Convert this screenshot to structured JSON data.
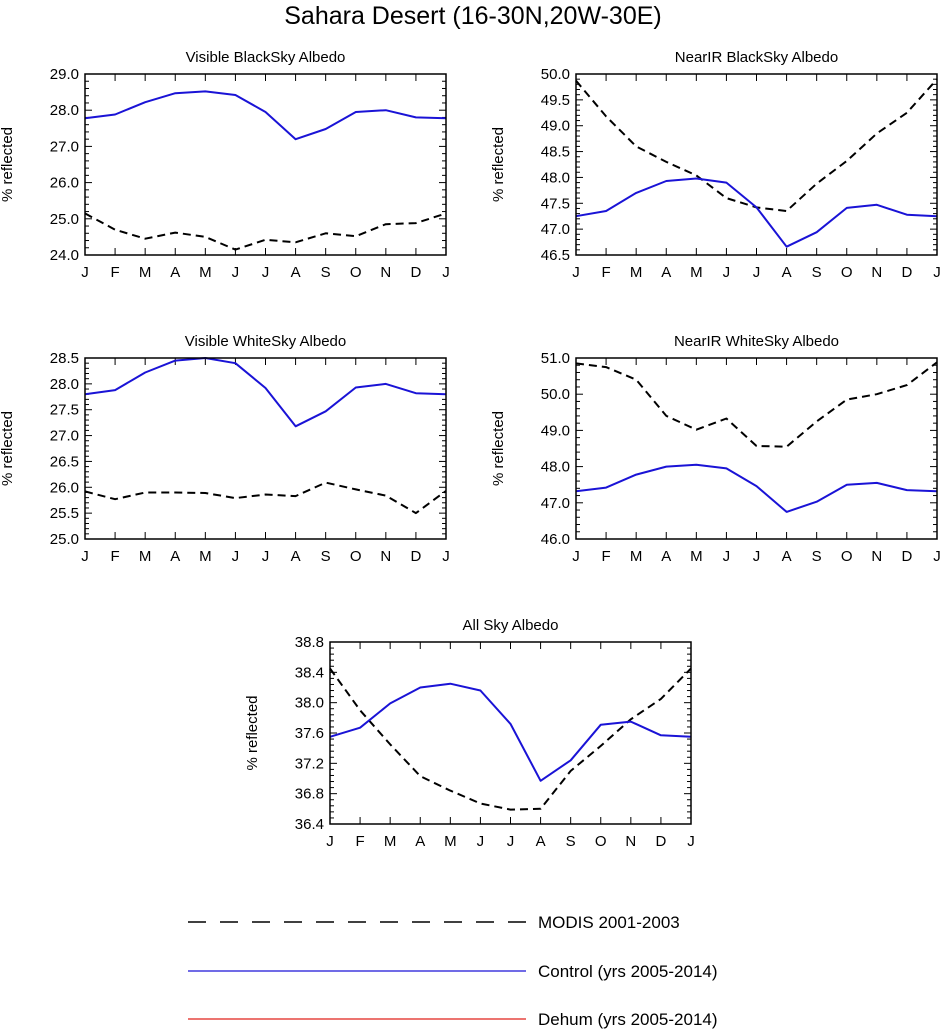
{
  "page_title": "Sahara Desert (16-30N,20W-30E)",
  "colors": {
    "modis": "#000000",
    "control": "#1a13d6",
    "dehum": "#e0201b"
  },
  "legend": {
    "entries": [
      {
        "label": "MODIS 2001-2003",
        "style": "dashed",
        "color": "#000000"
      },
      {
        "label": "Control (yrs 2005-2014)",
        "style": "solid",
        "color": "#1a13d6"
      },
      {
        "label": "Dehum (yrs 2005-2014)",
        "style": "solid",
        "color": "#e0201b"
      }
    ]
  },
  "chart_data": [
    {
      "type": "line",
      "title": "Visible BlackSky Albedo",
      "xlabel": "",
      "ylabel": "% reflected",
      "categories": [
        "J",
        "F",
        "M",
        "A",
        "M",
        "J",
        "J",
        "A",
        "S",
        "O",
        "N",
        "D",
        "J"
      ],
      "ylim": [
        24.0,
        29.0
      ],
      "yticks": [
        "24.0",
        "25.0",
        "26.0",
        "27.0",
        "28.0",
        "29.0"
      ],
      "series": [
        {
          "name": "MODIS 2001-2003",
          "values": [
            25.15,
            24.7,
            24.45,
            24.62,
            24.5,
            24.15,
            24.42,
            24.35,
            24.6,
            24.52,
            24.85,
            24.88,
            25.15
          ]
        },
        {
          "name": "Control (yrs 2005-2014)",
          "values": [
            27.78,
            27.88,
            28.22,
            28.47,
            28.52,
            28.42,
            27.95,
            27.2,
            27.48,
            27.95,
            28.0,
            27.8,
            27.78
          ]
        }
      ]
    },
    {
      "type": "line",
      "title": "NearIR BlackSky Albedo",
      "xlabel": "",
      "ylabel": "% reflected",
      "categories": [
        "J",
        "F",
        "M",
        "A",
        "M",
        "J",
        "J",
        "A",
        "S",
        "O",
        "N",
        "D",
        "J"
      ],
      "ylim": [
        46.5,
        50.0
      ],
      "yticks": [
        "46.5",
        "47.0",
        "47.5",
        "48.0",
        "48.5",
        "49.0",
        "49.5",
        "50.0"
      ],
      "series": [
        {
          "name": "MODIS 2001-2003",
          "values": [
            49.87,
            49.18,
            48.6,
            48.3,
            48.04,
            47.6,
            47.42,
            47.35,
            47.88,
            48.32,
            48.85,
            49.25,
            49.9
          ]
        },
        {
          "name": "Control (yrs 2005-2014)",
          "values": [
            47.25,
            47.35,
            47.7,
            47.93,
            47.98,
            47.9,
            47.42,
            46.66,
            46.94,
            47.41,
            47.47,
            47.28,
            47.25
          ]
        }
      ]
    },
    {
      "type": "line",
      "title": "Visible WhiteSky Albedo",
      "xlabel": "",
      "ylabel": "% reflected",
      "categories": [
        "J",
        "F",
        "M",
        "A",
        "M",
        "J",
        "J",
        "A",
        "S",
        "O",
        "N",
        "D",
        "J"
      ],
      "ylim": [
        25.0,
        28.5
      ],
      "yticks": [
        "25.0",
        "25.5",
        "26.0",
        "26.5",
        "27.0",
        "27.5",
        "28.0",
        "28.5"
      ],
      "series": [
        {
          "name": "MODIS 2001-2003",
          "values": [
            25.92,
            25.77,
            25.9,
            25.9,
            25.89,
            25.79,
            25.86,
            25.83,
            26.09,
            25.96,
            25.84,
            25.5,
            25.93
          ]
        },
        {
          "name": "Control (yrs 2005-2014)",
          "values": [
            27.8,
            27.88,
            28.22,
            28.45,
            28.5,
            28.4,
            27.92,
            27.18,
            27.47,
            27.93,
            28.0,
            27.82,
            27.8
          ]
        }
      ]
    },
    {
      "type": "line",
      "title": "NearIR WhiteSky Albedo",
      "xlabel": "",
      "ylabel": "% reflected",
      "categories": [
        "J",
        "F",
        "M",
        "A",
        "M",
        "J",
        "J",
        "A",
        "S",
        "O",
        "N",
        "D",
        "J"
      ],
      "ylim": [
        46.0,
        51.0
      ],
      "yticks": [
        "46.0",
        "47.0",
        "48.0",
        "49.0",
        "50.0",
        "51.0"
      ],
      "series": [
        {
          "name": "MODIS 2001-2003",
          "values": [
            50.85,
            50.75,
            50.4,
            49.4,
            49.02,
            49.33,
            48.57,
            48.55,
            49.25,
            49.85,
            50.0,
            50.25,
            50.88
          ]
        },
        {
          "name": "Control (yrs 2005-2014)",
          "values": [
            47.32,
            47.42,
            47.78,
            48.0,
            48.05,
            47.95,
            47.46,
            46.75,
            47.03,
            47.5,
            47.55,
            47.35,
            47.32
          ]
        }
      ]
    },
    {
      "type": "line",
      "title": "All Sky Albedo",
      "xlabel": "",
      "ylabel": "% reflected",
      "categories": [
        "J",
        "F",
        "M",
        "A",
        "M",
        "J",
        "J",
        "A",
        "S",
        "O",
        "N",
        "D",
        "J"
      ],
      "ylim": [
        36.4,
        38.8
      ],
      "yticks": [
        "36.4",
        "36.8",
        "37.2",
        "37.6",
        "38.0",
        "38.4",
        "38.8"
      ],
      "series": [
        {
          "name": "MODIS 2001-2003",
          "values": [
            38.45,
            37.9,
            37.45,
            37.03,
            36.84,
            36.67,
            36.59,
            36.6,
            37.1,
            37.43,
            37.78,
            38.05,
            38.45
          ]
        },
        {
          "name": "Control (yrs 2005-2014)",
          "values": [
            37.55,
            37.67,
            37.99,
            38.2,
            38.25,
            38.16,
            37.72,
            36.97,
            37.24,
            37.71,
            37.75,
            37.57,
            37.55
          ]
        }
      ]
    }
  ]
}
